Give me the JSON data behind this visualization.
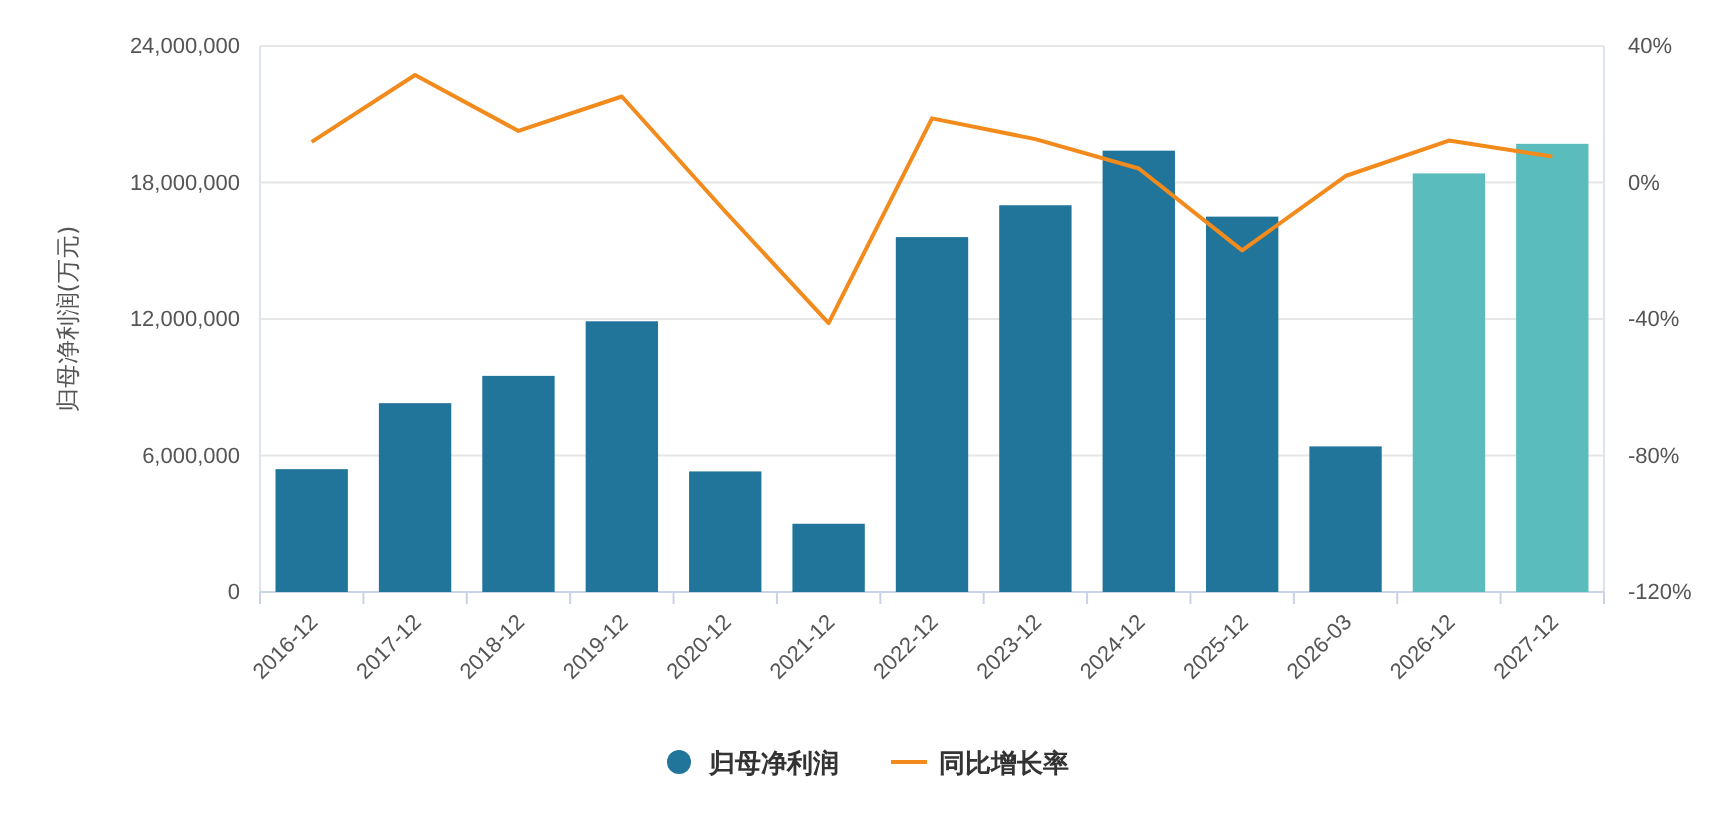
{
  "chart_data": {
    "type": "bar",
    "ylabel": "归母净利润(万元)",
    "categories": [
      "2016-12",
      "2017-12",
      "2018-12",
      "2019-12",
      "2020-12",
      "2021-12",
      "2022-12",
      "2023-12",
      "2024-12",
      "2025-12",
      "2026-03",
      "2026-12",
      "2027-12"
    ],
    "series": [
      {
        "name": "归母净利润",
        "color": "#21759b",
        "colors": [
          "#21759b",
          "#21759b",
          "#21759b",
          "#21759b",
          "#21759b",
          "#21759b",
          "#21759b",
          "#21759b",
          "#21759b",
          "#21759b",
          "#21759b",
          "#5bbcbd",
          "#5bbcbd"
        ],
        "values": [
          5400000,
          8300000,
          9500000,
          11900000,
          5300000,
          3000000,
          15600000,
          17000000,
          19400000,
          16500000,
          6400000,
          18400000,
          19700000
        ]
      },
      {
        "name": "同比增长率",
        "type": "line",
        "axis": "y2",
        "color": "#f28a1c",
        "values": [
          11.9,
          31.5,
          15.1,
          25.2,
          -8.5,
          -41.2,
          18.8,
          12.7,
          4.1,
          -19.9,
          1.9,
          12.3,
          7.6
        ]
      }
    ],
    "ylim": [
      0,
      24000000
    ],
    "yticks": [
      {
        "value": 0,
        "label": "0"
      },
      {
        "value": 6000000,
        "label": "6,000,000"
      },
      {
        "value": 12000000,
        "label": "12,000,000"
      },
      {
        "value": 18000000,
        "label": "18,000,000"
      },
      {
        "value": 24000000,
        "label": "24,000,000"
      }
    ],
    "y2lim": [
      -120,
      40
    ],
    "y2ticks": [
      {
        "value": -120,
        "label": "-120%"
      },
      {
        "value": -80,
        "label": "-80%"
      },
      {
        "value": -40,
        "label": "-40%"
      },
      {
        "value": 0,
        "label": "0%"
      },
      {
        "value": 40,
        "label": "40%"
      }
    ],
    "grid": "y",
    "legend": "bottom",
    "marker": "none"
  }
}
